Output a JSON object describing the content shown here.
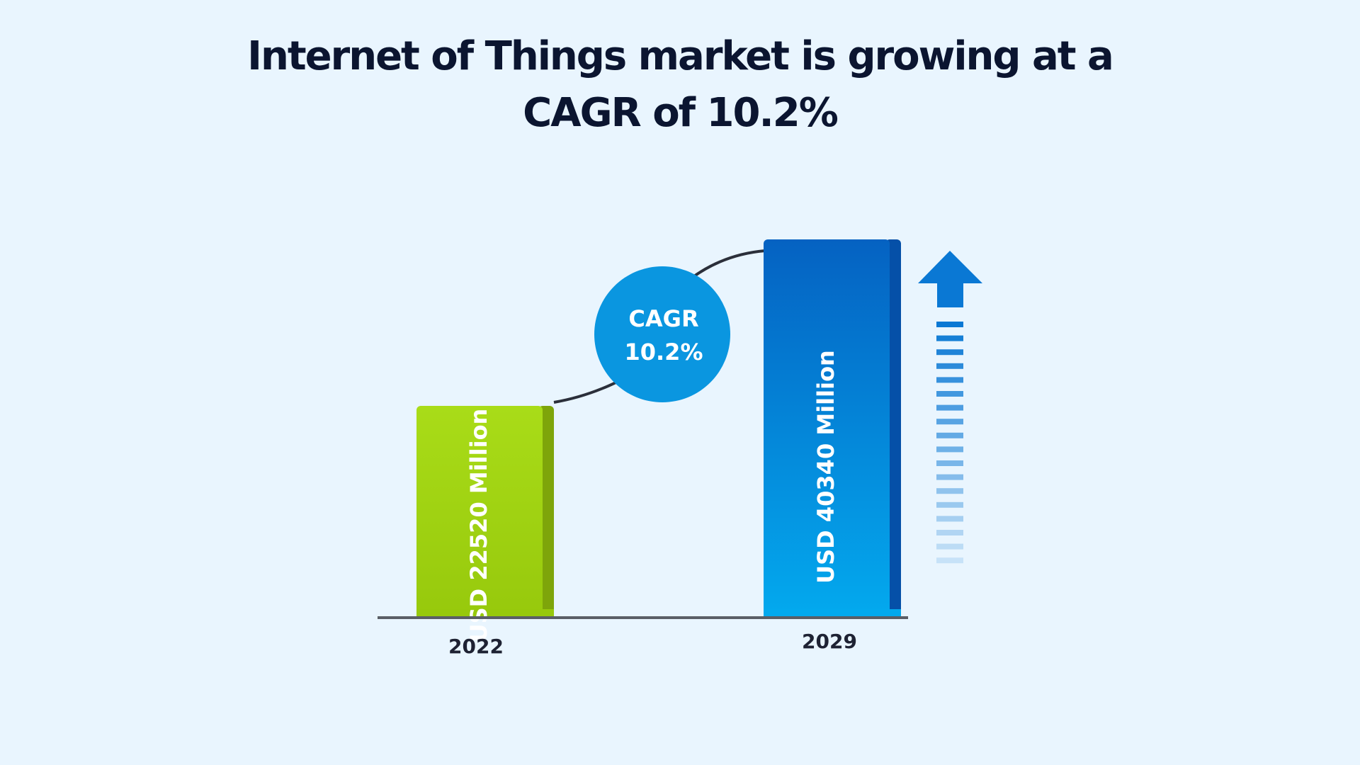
{
  "title_line1": "Internet of Things market is growing at a",
  "title_line2": "CAGR of 10.2%",
  "colors": {
    "background": "#e9f5fe",
    "bar_2022": "#9fd113",
    "bar_2029": "#0a78d4",
    "cagr_badge": "#0a96e0",
    "arrow": "#0a78d4",
    "axis": "#5a5e66",
    "title": "#0b1530"
  },
  "cagr_badge": {
    "line1": "CAGR",
    "line2": "10.2%"
  },
  "chart_data": {
    "type": "bar",
    "title": "Internet of Things market is growing at a CAGR of 10.2%",
    "categories": [
      "2022",
      "2029"
    ],
    "values": [
      22520,
      40340
    ],
    "unit": "USD Million",
    "bar_labels": [
      "USD 22520 Million",
      "USD 40340 Million"
    ],
    "annotations": [
      "CAGR 10.2%"
    ],
    "legend": "none",
    "grid": false
  }
}
